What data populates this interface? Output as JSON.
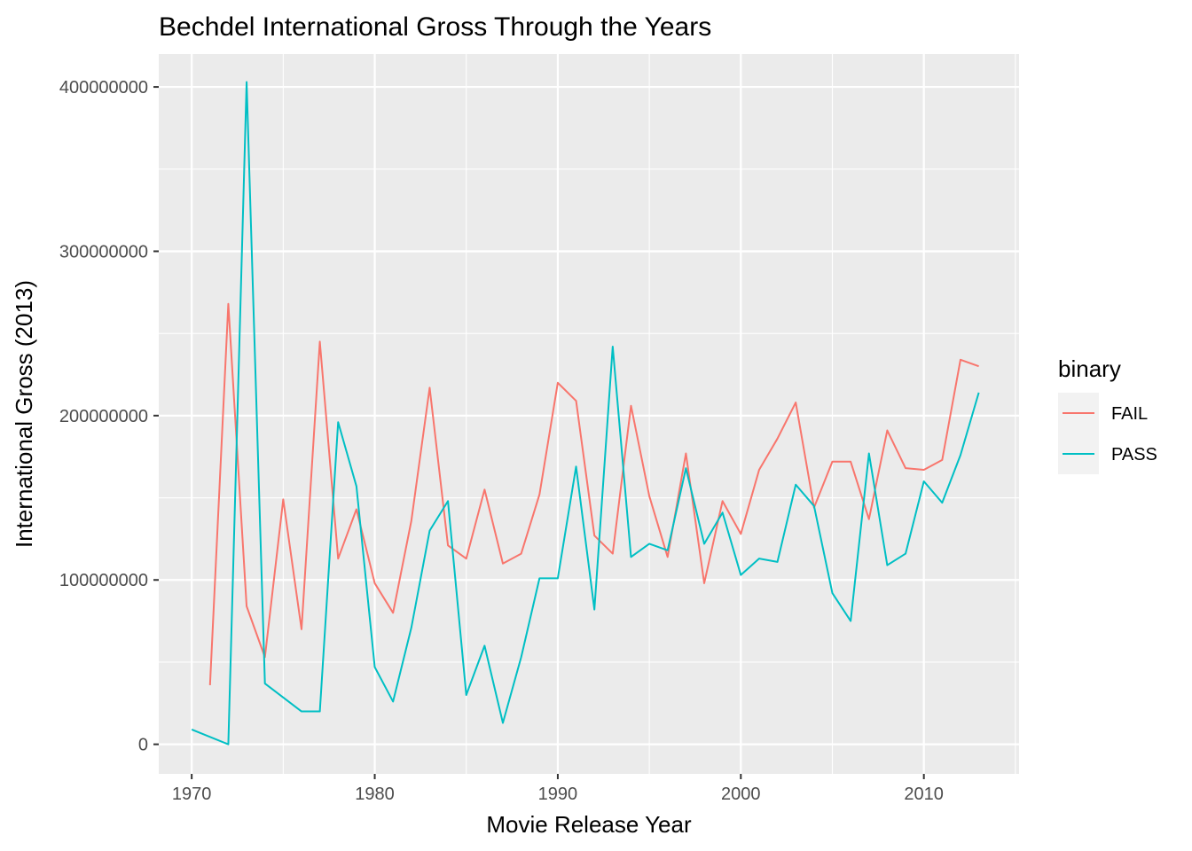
{
  "chart_data": {
    "type": "line",
    "title": "Bechdel International Gross Through the Years",
    "xlabel": "Movie Release Year",
    "ylabel": "International Gross (2013)",
    "xlim": [
      1968.2,
      2015.2
    ],
    "ylim": [
      -18000000,
      420000000
    ],
    "x_ticks": [
      1970,
      1980,
      1990,
      2000,
      2010
    ],
    "x_tick_labels": [
      "1970",
      "1980",
      "1990",
      "2000",
      "2010"
    ],
    "x_minor_ticks": [
      1975,
      1985,
      1995,
      2005,
      2015
    ],
    "y_ticks": [
      0,
      100000000,
      200000000,
      300000000,
      400000000
    ],
    "y_tick_labels": [
      "0",
      "100000000",
      "200000000",
      "300000000",
      "400000000"
    ],
    "y_minor_ticks": [
      50000000,
      150000000,
      250000000,
      350000000
    ],
    "grid": true,
    "panel_background": "#ebebeb",
    "legend": {
      "title": "binary",
      "placement": "right",
      "entries": [
        "FAIL",
        "PASS"
      ]
    },
    "series": [
      {
        "name": "FAIL",
        "color": "#f8766d",
        "points": [
          [
            1971,
            36000000
          ],
          [
            1972,
            268000000
          ],
          [
            1973,
            84000000
          ],
          [
            1974,
            53000000
          ],
          [
            1975,
            149000000
          ],
          [
            1976,
            70000000
          ],
          [
            1977,
            245000000
          ],
          [
            1978,
            113000000
          ],
          [
            1979,
            143000000
          ],
          [
            1980,
            98000000
          ],
          [
            1981,
            80000000
          ],
          [
            1982,
            136000000
          ],
          [
            1983,
            217000000
          ],
          [
            1984,
            121000000
          ],
          [
            1985,
            113000000
          ],
          [
            1986,
            155000000
          ],
          [
            1987,
            110000000
          ],
          [
            1988,
            116000000
          ],
          [
            1989,
            152000000
          ],
          [
            1990,
            220000000
          ],
          [
            1991,
            209000000
          ],
          [
            1992,
            127000000
          ],
          [
            1993,
            116000000
          ],
          [
            1994,
            206000000
          ],
          [
            1995,
            151000000
          ],
          [
            1996,
            114000000
          ],
          [
            1997,
            177000000
          ],
          [
            1998,
            98000000
          ],
          [
            1999,
            148000000
          ],
          [
            2000,
            128000000
          ],
          [
            2001,
            167000000
          ],
          [
            2002,
            186000000
          ],
          [
            2003,
            208000000
          ],
          [
            2004,
            144000000
          ],
          [
            2005,
            172000000
          ],
          [
            2006,
            172000000
          ],
          [
            2007,
            137000000
          ],
          [
            2008,
            191000000
          ],
          [
            2009,
            168000000
          ],
          [
            2010,
            167000000
          ],
          [
            2011,
            173000000
          ],
          [
            2012,
            234000000
          ],
          [
            2013,
            230000000
          ]
        ]
      },
      {
        "name": "PASS",
        "color": "#00bfc4",
        "points": [
          [
            1970,
            9000000
          ],
          [
            1972,
            0
          ],
          [
            1973,
            403000000
          ],
          [
            1974,
            37000000
          ],
          [
            1976,
            20000000
          ],
          [
            1977,
            20000000
          ],
          [
            1978,
            196000000
          ],
          [
            1979,
            157000000
          ],
          [
            1980,
            47000000
          ],
          [
            1981,
            26000000
          ],
          [
            1982,
            71000000
          ],
          [
            1983,
            130000000
          ],
          [
            1984,
            148000000
          ],
          [
            1985,
            30000000
          ],
          [
            1986,
            60000000
          ],
          [
            1987,
            13000000
          ],
          [
            1988,
            53000000
          ],
          [
            1989,
            101000000
          ],
          [
            1990,
            101000000
          ],
          [
            1991,
            169000000
          ],
          [
            1992,
            82000000
          ],
          [
            1993,
            242000000
          ],
          [
            1994,
            114000000
          ],
          [
            1995,
            122000000
          ],
          [
            1996,
            118000000
          ],
          [
            1997,
            168000000
          ],
          [
            1998,
            122000000
          ],
          [
            1999,
            141000000
          ],
          [
            2000,
            103000000
          ],
          [
            2001,
            113000000
          ],
          [
            2002,
            111000000
          ],
          [
            2003,
            158000000
          ],
          [
            2004,
            145000000
          ],
          [
            2005,
            92000000
          ],
          [
            2006,
            75000000
          ],
          [
            2007,
            177000000
          ],
          [
            2008,
            109000000
          ],
          [
            2009,
            116000000
          ],
          [
            2010,
            160000000
          ],
          [
            2011,
            147000000
          ],
          [
            2012,
            176000000
          ],
          [
            2013,
            214000000
          ]
        ]
      }
    ]
  }
}
